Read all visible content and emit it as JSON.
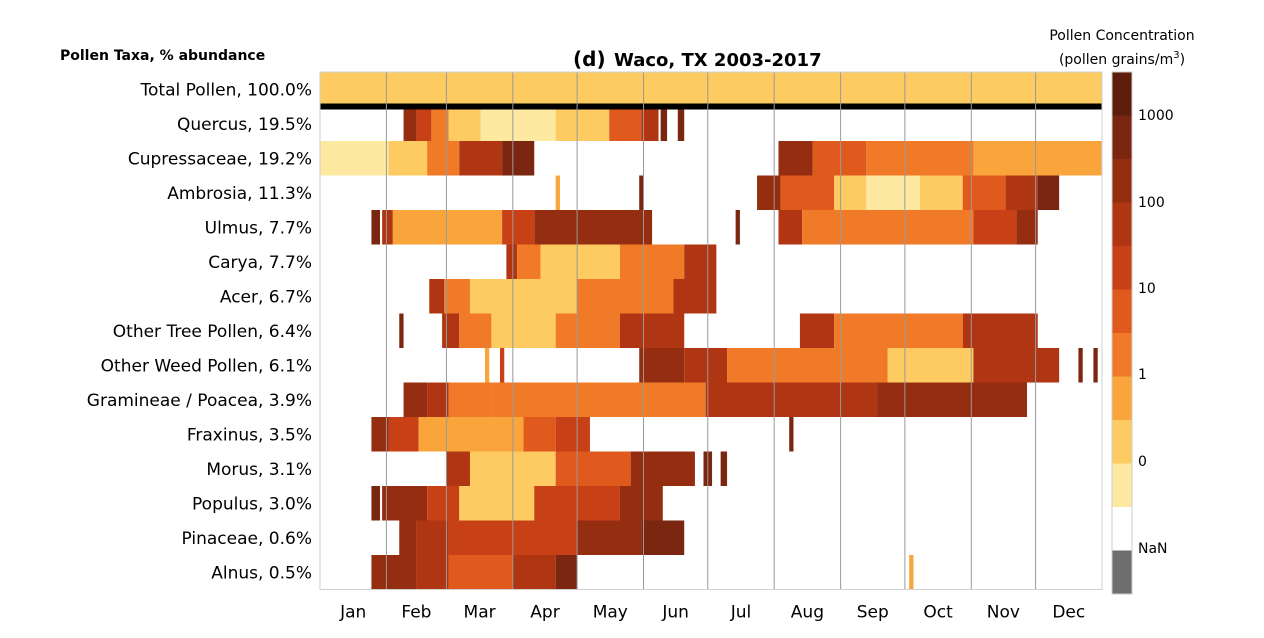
{
  "chart_data": {
    "type": "heatmap",
    "title": "Waco, TX  2003-2017",
    "panel_label": "(d)",
    "row_header": "Pollen Taxa, % abundance",
    "x_ticks": [
      "Jan",
      "Feb",
      "Mar",
      "Apr",
      "May",
      "Jun",
      "Jul",
      "Aug",
      "Sep",
      "Oct",
      "Nov",
      "Dec"
    ],
    "colorbar": {
      "title_line1": "Pollen Concentration",
      "title_line2_prefix": "(pollen grains/m",
      "title_line2_sup": "3",
      "title_line2_suffix": ")",
      "scale": "log",
      "tick_labels": [
        "1000",
        "100",
        "10",
        "1",
        "0",
        "NaN"
      ],
      "colors": [
        "#5c1e0a",
        "#7a2610",
        "#952d11",
        "#b03512",
        "#c84016",
        "#df5a1c",
        "#f07a28",
        "#f9a53c",
        "#fdcb62",
        "#fde9a0",
        "#ffffff",
        "#6e6e6e"
      ]
    },
    "day_of_year_marks": {
      "month_starts": [
        1,
        32,
        60,
        91,
        121,
        152,
        182,
        213,
        244,
        274,
        305,
        335
      ]
    },
    "rows": [
      {
        "label": "Total Pollen, 100.0%",
        "segments": [
          [
            1,
            365,
            8
          ]
        ]
      },
      {
        "label": "Quercus, 19.5%",
        "segments": [
          [
            40,
            45,
            2
          ],
          [
            46,
            52,
            4
          ],
          [
            53,
            60,
            6
          ],
          [
            61,
            75,
            8
          ],
          [
            76,
            110,
            9
          ],
          [
            111,
            135,
            8
          ],
          [
            136,
            150,
            5
          ],
          [
            151,
            158,
            3
          ],
          [
            160,
            162,
            1
          ],
          [
            168,
            170,
            1
          ]
        ]
      },
      {
        "label": "Cupressaceae, 19.2%",
        "segments": [
          [
            1,
            32,
            9
          ],
          [
            33,
            50,
            8
          ],
          [
            51,
            65,
            6
          ],
          [
            66,
            85,
            3
          ],
          [
            86,
            100,
            1
          ],
          [
            215,
            230,
            2
          ],
          [
            231,
            255,
            5
          ],
          [
            256,
            305,
            6
          ],
          [
            306,
            330,
            7
          ],
          [
            331,
            365,
            7
          ]
        ]
      },
      {
        "label": "Ambrosia, 11.3%",
        "segments": [
          [
            111,
            112,
            7
          ],
          [
            150,
            151,
            1
          ],
          [
            205,
            215,
            2
          ],
          [
            216,
            240,
            5
          ],
          [
            241,
            255,
            8
          ],
          [
            256,
            280,
            9
          ],
          [
            281,
            300,
            8
          ],
          [
            301,
            320,
            5
          ],
          [
            321,
            335,
            3
          ],
          [
            336,
            345,
            1
          ]
        ]
      },
      {
        "label": "Ulmus, 7.7%",
        "segments": [
          [
            25,
            28,
            1
          ],
          [
            30,
            34,
            3
          ],
          [
            35,
            85,
            7
          ],
          [
            86,
            100,
            4
          ],
          [
            101,
            155,
            2
          ],
          [
            195,
            196,
            1
          ],
          [
            215,
            225,
            3
          ],
          [
            226,
            305,
            6
          ],
          [
            306,
            325,
            4
          ],
          [
            326,
            335,
            2
          ]
        ]
      },
      {
        "label": "Carya, 7.7%",
        "segments": [
          [
            88,
            92,
            3
          ],
          [
            93,
            103,
            6
          ],
          [
            104,
            140,
            8
          ],
          [
            141,
            170,
            6
          ],
          [
            171,
            185,
            3
          ]
        ]
      },
      {
        "label": "Acer, 6.7%",
        "segments": [
          [
            52,
            58,
            3
          ],
          [
            59,
            70,
            6
          ],
          [
            71,
            120,
            8
          ],
          [
            121,
            165,
            6
          ],
          [
            166,
            185,
            3
          ]
        ]
      },
      {
        "label": "Other Tree Pollen, 6.4%",
        "segments": [
          [
            38,
            39,
            1
          ],
          [
            58,
            65,
            3
          ],
          [
            66,
            80,
            6
          ],
          [
            81,
            110,
            8
          ],
          [
            111,
            140,
            6
          ],
          [
            141,
            170,
            3
          ],
          [
            225,
            240,
            3
          ],
          [
            241,
            300,
            6
          ],
          [
            301,
            335,
            3
          ]
        ]
      },
      {
        "label": "Other Weed Pollen, 6.1%",
        "segments": [
          [
            78,
            79,
            7
          ],
          [
            85,
            86,
            4
          ],
          [
            150,
            170,
            2
          ],
          [
            171,
            190,
            3
          ],
          [
            191,
            265,
            6
          ],
          [
            266,
            305,
            8
          ],
          [
            306,
            345,
            3
          ],
          [
            355,
            356,
            1
          ],
          [
            362,
            363,
            1
          ]
        ]
      },
      {
        "label": "Gramineae / Poacea, 3.9%",
        "segments": [
          [
            40,
            50,
            2
          ],
          [
            51,
            60,
            3
          ],
          [
            61,
            80,
            6
          ],
          [
            81,
            180,
            6
          ],
          [
            181,
            260,
            3
          ],
          [
            261,
            330,
            2
          ]
        ]
      },
      {
        "label": "Fraxinus, 3.5%",
        "segments": [
          [
            25,
            32,
            2
          ],
          [
            33,
            46,
            4
          ],
          [
            47,
            95,
            7
          ],
          [
            96,
            110,
            5
          ],
          [
            111,
            126,
            4
          ],
          [
            220,
            221,
            1
          ]
        ]
      },
      {
        "label": "Morus, 3.1%",
        "segments": [
          [
            60,
            70,
            3
          ],
          [
            71,
            110,
            8
          ],
          [
            111,
            145,
            5
          ],
          [
            146,
            175,
            2
          ],
          [
            180,
            183,
            1
          ],
          [
            188,
            190,
            1
          ]
        ]
      },
      {
        "label": "Populus, 3.0%",
        "segments": [
          [
            25,
            28,
            1
          ],
          [
            30,
            50,
            2
          ],
          [
            51,
            65,
            4
          ],
          [
            66,
            100,
            8
          ],
          [
            101,
            140,
            4
          ],
          [
            141,
            160,
            2
          ]
        ]
      },
      {
        "label": "Pinaceae, 0.6%",
        "segments": [
          [
            38,
            45,
            2
          ],
          [
            46,
            60,
            3
          ],
          [
            61,
            120,
            4
          ],
          [
            121,
            150,
            2
          ],
          [
            151,
            170,
            1
          ]
        ]
      },
      {
        "label": "Alnus, 0.5%",
        "segments": [
          [
            25,
            45,
            2
          ],
          [
            46,
            60,
            3
          ],
          [
            61,
            90,
            5
          ],
          [
            91,
            110,
            3
          ],
          [
            111,
            120,
            1
          ],
          [
            276,
            277,
            7
          ]
        ]
      }
    ]
  }
}
